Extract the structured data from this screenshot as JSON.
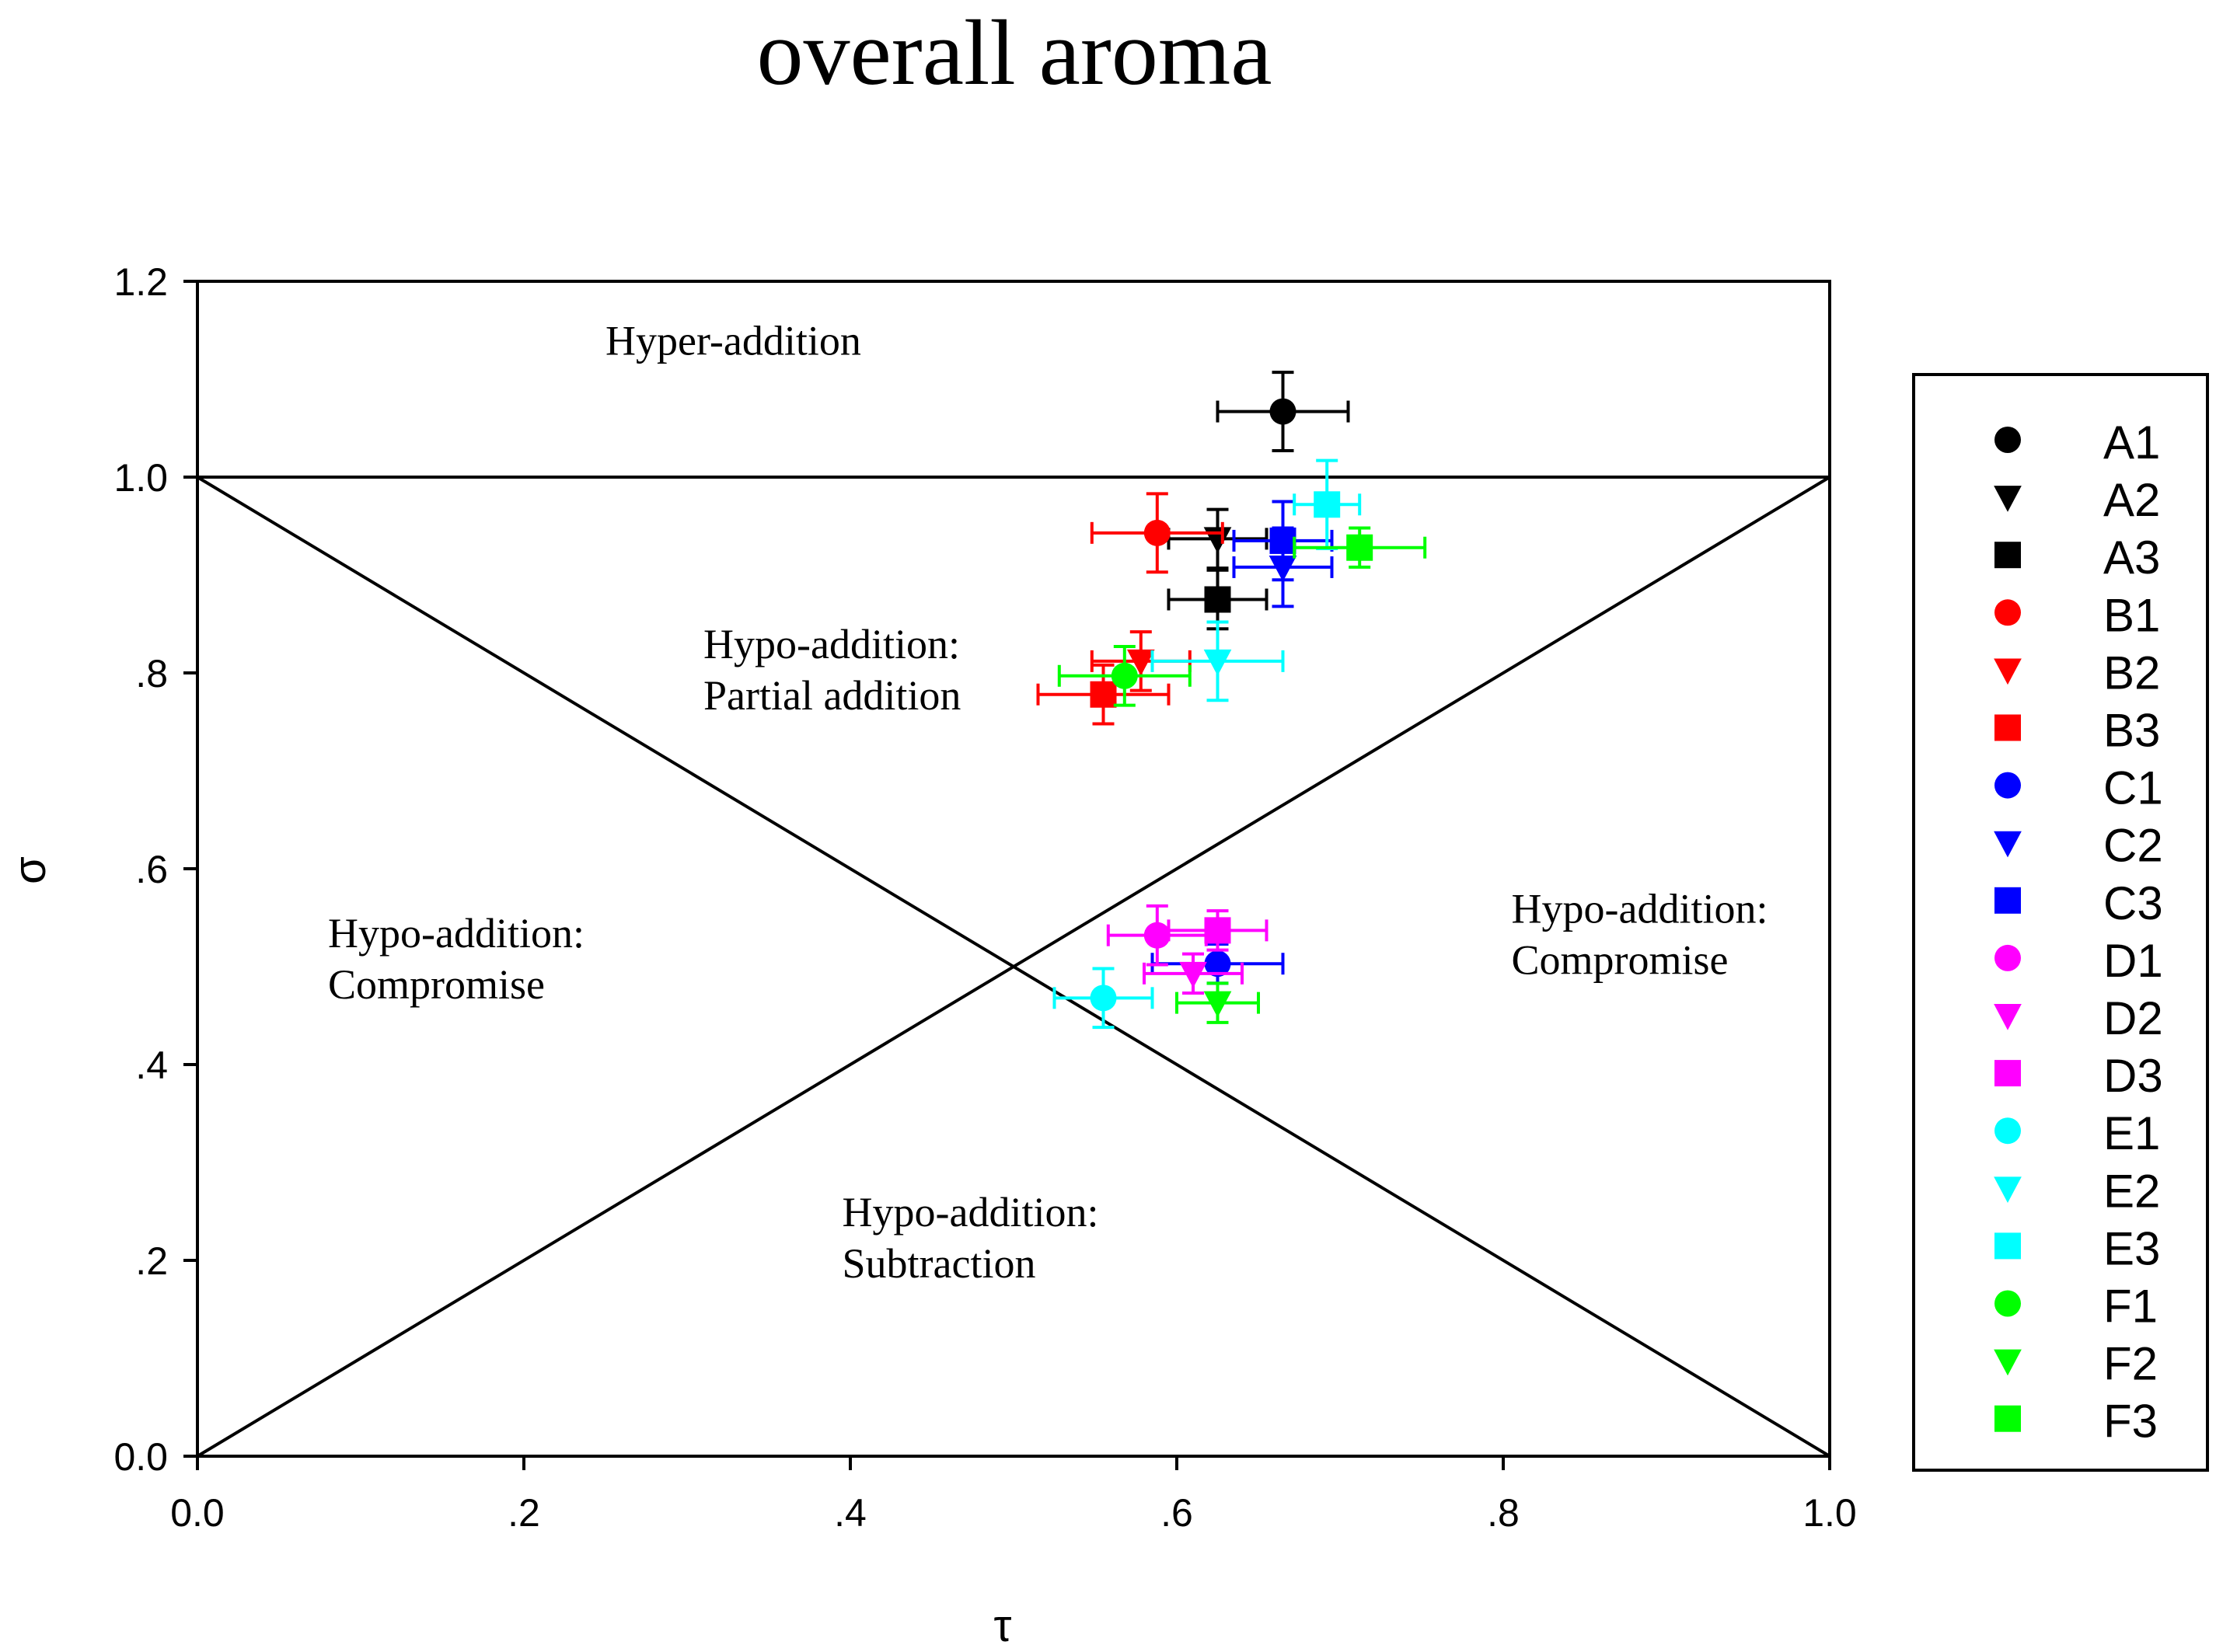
{
  "chart_data": {
    "type": "scatter",
    "title": "overall aroma",
    "xlabel": "τ",
    "ylabel": "σ",
    "xlim": [
      0,
      1
    ],
    "ylim": [
      0,
      1.2
    ],
    "x_ticks": [
      {
        "value": 0,
        "label": "0.0"
      },
      {
        "value": 0.2,
        "label": ".2"
      },
      {
        "value": 0.4,
        "label": ".4"
      },
      {
        "value": 0.6,
        "label": ".6"
      },
      {
        "value": 0.8,
        "label": ".8"
      },
      {
        "value": 1.0,
        "label": "1.0"
      }
    ],
    "y_ticks": [
      {
        "value": 0,
        "label": "0.0"
      },
      {
        "value": 0.2,
        "label": ".2"
      },
      {
        "value": 0.4,
        "label": ".4"
      },
      {
        "value": 0.6,
        "label": ".6"
      },
      {
        "value": 0.8,
        "label": ".8"
      },
      {
        "value": 1.0,
        "label": "1.0"
      },
      {
        "value": 1.2,
        "label": "1.2"
      }
    ],
    "grid": false,
    "legend_position": "right",
    "reference_lines": [
      {
        "name": "hyper-addition-boundary",
        "x": [
          0,
          1
        ],
        "y": [
          1,
          1
        ]
      },
      {
        "name": "diagonal-descending",
        "x": [
          0,
          1
        ],
        "y": [
          1,
          0
        ]
      },
      {
        "name": "diagonal-ascending",
        "x": [
          0,
          1
        ],
        "y": [
          0,
          1
        ]
      }
    ],
    "regions": [
      {
        "name": "hyper-addition",
        "lines": [
          "Hyper-addition"
        ],
        "x": 0.25,
        "y": 1.125
      },
      {
        "name": "partial-addition",
        "lines": [
          "Hypo-addition:",
          "Partial addition"
        ],
        "x": 0.31,
        "y": 0.815
      },
      {
        "name": "compromise-left",
        "lines": [
          "Hypo-addition:",
          "Compromise"
        ],
        "x": 0.08,
        "y": 0.52
      },
      {
        "name": "compromise-right",
        "lines": [
          "Hypo-addition:",
          "Compromise"
        ],
        "x": 0.805,
        "y": 0.545
      },
      {
        "name": "subtraction",
        "lines": [
          "Hypo-addition:",
          "Subtraction"
        ],
        "x": 0.395,
        "y": 0.235
      }
    ],
    "series": [
      {
        "name": "A1",
        "color": "#000000",
        "marker": "circle",
        "x": 0.665,
        "y": 1.067,
        "xerr": 0.04,
        "yerr": 0.04
      },
      {
        "name": "A2",
        "color": "#000000",
        "marker": "triangle-down",
        "x": 0.625,
        "y": 0.937,
        "xerr": 0.03,
        "yerr": 0.03
      },
      {
        "name": "A3",
        "color": "#000000",
        "marker": "square",
        "x": 0.625,
        "y": 0.875,
        "xerr": 0.03,
        "yerr": 0.03
      },
      {
        "name": "B1",
        "color": "#ff0000",
        "marker": "circle",
        "x": 0.588,
        "y": 0.943,
        "xerr": 0.04,
        "yerr": 0.04
      },
      {
        "name": "B2",
        "color": "#ff0000",
        "marker": "triangle-down",
        "x": 0.578,
        "y": 0.812,
        "xerr": 0.03,
        "yerr": 0.03
      },
      {
        "name": "B3",
        "color": "#ff0000",
        "marker": "square",
        "x": 0.555,
        "y": 0.778,
        "xerr": 0.04,
        "yerr": 0.03
      },
      {
        "name": "C1",
        "color": "#0000ff",
        "marker": "circle",
        "x": 0.625,
        "y": 0.503,
        "xerr": 0.04,
        "yerr": 0.02
      },
      {
        "name": "C2",
        "color": "#0000ff",
        "marker": "triangle-down",
        "x": 0.665,
        "y": 0.908,
        "xerr": 0.03,
        "yerr": 0.04
      },
      {
        "name": "C3",
        "color": "#0000ff",
        "marker": "square",
        "x": 0.665,
        "y": 0.935,
        "xerr": 0.03,
        "yerr": 0.04
      },
      {
        "name": "D1",
        "color": "#ff00ff",
        "marker": "circle",
        "x": 0.588,
        "y": 0.532,
        "xerr": 0.03,
        "yerr": 0.03
      },
      {
        "name": "D2",
        "color": "#ff00ff",
        "marker": "triangle-down",
        "x": 0.61,
        "y": 0.493,
        "xerr": 0.03,
        "yerr": 0.02
      },
      {
        "name": "D3",
        "color": "#ff00ff",
        "marker": "square",
        "x": 0.625,
        "y": 0.537,
        "xerr": 0.03,
        "yerr": 0.02
      },
      {
        "name": "E1",
        "color": "#00ffff",
        "marker": "circle",
        "x": 0.555,
        "y": 0.468,
        "xerr": 0.03,
        "yerr": 0.03
      },
      {
        "name": "E2",
        "color": "#00ffff",
        "marker": "triangle-down",
        "x": 0.625,
        "y": 0.812,
        "xerr": 0.04,
        "yerr": 0.04
      },
      {
        "name": "E3",
        "color": "#00ffff",
        "marker": "square",
        "x": 0.692,
        "y": 0.972,
        "xerr": 0.02,
        "yerr": 0.045
      },
      {
        "name": "F1",
        "color": "#00ff00",
        "marker": "circle",
        "x": 0.568,
        "y": 0.797,
        "xerr": 0.04,
        "yerr": 0.03
      },
      {
        "name": "F2",
        "color": "#00ff00",
        "marker": "triangle-down",
        "x": 0.625,
        "y": 0.463,
        "xerr": 0.025,
        "yerr": 0.02
      },
      {
        "name": "F3",
        "color": "#00ff00",
        "marker": "square",
        "x": 0.712,
        "y": 0.928,
        "xerr": 0.04,
        "yerr": 0.02
      }
    ]
  }
}
